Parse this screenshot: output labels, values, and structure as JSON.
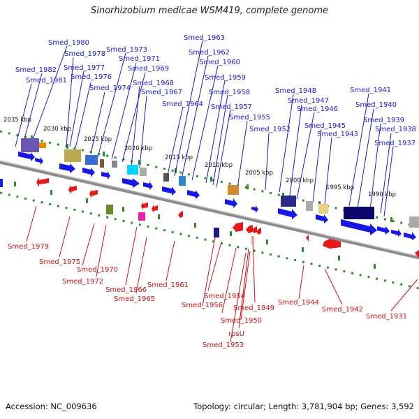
{
  "title": "Sinorhizobium medicae WSM419, complete genome",
  "accession": "Accession: NC_009636",
  "topology": "Topology: circular; Length: 3,781,904 bp; Genes: 3,592",
  "colors": {
    "forward_label": "#1a1acc",
    "reverse_label": "#cc1111",
    "backbone": "#8c8c8c",
    "tick": "#2e8b2e"
  },
  "kbp_ticks": [
    "2035 kbp",
    "2030 kbp",
    "2025 kbp",
    "2020 kbp",
    "2015 kbp",
    "2010 kbp",
    "2005 kbp",
    "2000 kbp",
    "1995 kbp",
    "1990 kbp"
  ],
  "forward_genes": [
    "Smed_1963",
    "Smed_1980",
    "Smed_1973",
    "Smed_1962",
    "Smed_1978",
    "Smed_1971",
    "Smed_1960",
    "Smed_1977",
    "Smed_1982",
    "Smed_1969",
    "Smed_1976",
    "Smed_1959",
    "Smed_1981",
    "Smed_1968",
    "Smed_1974",
    "Smed_1958",
    "Smed_1948",
    "Smed_1941",
    "Smed_1967",
    "Smed_1947",
    "Smed_1964",
    "Smed_1957",
    "Smed_1946",
    "Smed_1940",
    "Smed_1955",
    "Smed_1939",
    "Smed_1945",
    "Smed_1952",
    "Smed_1938",
    "Smed_1943",
    "Smed_1937"
  ],
  "reverse_genes": [
    "Smed_1979",
    "Smed_1975",
    "Smed_1970",
    "Smed_1972",
    "Smed_1961",
    "Smed_1966",
    "Smed_1965",
    "Smed_1954",
    "Smed_1944",
    "Smed_1956",
    "Smed_1949",
    "Smed_1942",
    "Smed_1931",
    "Smed_1950",
    "rpsU",
    "Smed_1953"
  ]
}
